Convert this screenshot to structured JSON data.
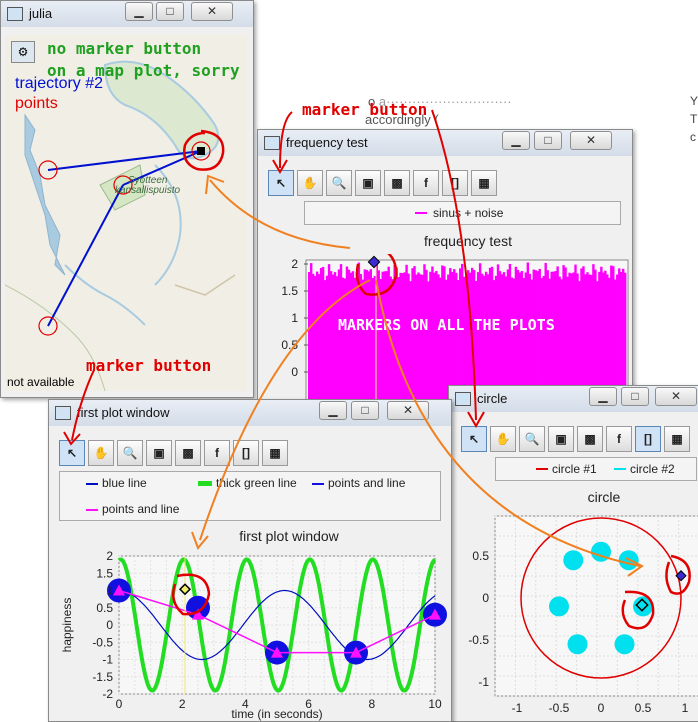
{
  "background_text": {
    "line1": "o",
    "line2": "accordingly (",
    "right_col": [
      "Y",
      "T",
      "c"
    ]
  },
  "julia_window": {
    "title": "julia",
    "map_note_line1": "no marker button",
    "map_note_line2": "on a map plot, sorry",
    "traj_label": "trajectory #2",
    "points_label": "points",
    "park_label_line1": "Syotteen",
    "park_label_line2": "kansallispuisto",
    "status": "not available",
    "colors": {
      "trajectory": "#0010d0",
      "points": "#e00000",
      "note": "#20a020"
    }
  },
  "annotations": {
    "marker_button_1": "marker button",
    "marker_button_2": "marker button",
    "markers_on_all": "MARKERS ON ALL THE PLOTS",
    "color": "#e00000"
  },
  "frequency_window": {
    "title": "frequency test",
    "legend": "sinus + noise",
    "plot_title": "frequency test",
    "toolbar": [
      "pointer-icon",
      "hand-icon",
      "zoom-icon",
      "save-icon",
      "save-as-icon",
      "f",
      "[]",
      "surface-icon"
    ]
  },
  "circle_window": {
    "title": "circle",
    "legend": [
      "circle #1",
      "circle #2"
    ],
    "plot_title": "circle"
  },
  "first_window": {
    "title": "first plot window",
    "legend": [
      "blue line",
      "thick green line",
      "points and line",
      "points and line"
    ],
    "plot_title": "first plot window",
    "xlabel": "time (in seconds)",
    "ylabel": "happiness"
  },
  "window_buttons": {
    "min": "▁",
    "max": "□",
    "close": "✕"
  },
  "toolbar_labels": {
    "f": "f",
    "brackets": "[]"
  },
  "chart_data": [
    {
      "type": "bar",
      "title": "frequency test",
      "series": [
        {
          "name": "sinus + noise",
          "color": "#ff00ff"
        }
      ],
      "yticks": [
        "2",
        "1.5",
        "1",
        "0.5",
        "0"
      ],
      "ylim": [
        0,
        2
      ],
      "marker": {
        "y": 1.97
      }
    },
    {
      "type": "scatter",
      "title": "circle",
      "series": [
        {
          "name": "circle #1",
          "color": "#e00000",
          "center": [
            0,
            0
          ],
          "radius": 0.95
        },
        {
          "name": "circle #2",
          "color": "#00e0ee",
          "points": [
            [
              0,
              0.55
            ],
            [
              0.33,
              0.45
            ],
            [
              -0.33,
              0.45
            ],
            [
              0.5,
              -0.1
            ],
            [
              -0.5,
              -0.1
            ],
            [
              0.28,
              -0.55
            ],
            [
              -0.28,
              -0.55
            ]
          ]
        }
      ],
      "xticks": [
        "-1",
        "-0.5",
        "0",
        "0.5",
        "1"
      ],
      "yticks": [
        "0.5",
        "0",
        "-0.5",
        "-1"
      ],
      "markers": [
        [
          0.92,
          0.3
        ],
        [
          0.5,
          -0.1
        ]
      ]
    },
    {
      "type": "line",
      "title": "first plot window",
      "xlabel": "time (in seconds)",
      "ylabel": "happiness",
      "xticks": [
        "0",
        "2",
        "4",
        "6",
        "8",
        "10"
      ],
      "yticks": [
        "2",
        "1.5",
        "1",
        "0.5",
        "0",
        "-0.5",
        "-1",
        "-1.5",
        "-2"
      ],
      "xlim": [
        0,
        10
      ],
      "ylim": [
        -2,
        2
      ],
      "series": [
        {
          "name": "blue line",
          "color": "#0010c0",
          "type": "sine"
        },
        {
          "name": "thick green line",
          "color": "#22dd22",
          "type": "fast-sine"
        },
        {
          "name": "points and line",
          "color": "#1010e0",
          "x": [
            0,
            2.5,
            5,
            7.5,
            10
          ],
          "y": [
            1,
            0.5,
            -0.8,
            -0.8,
            0.3
          ]
        },
        {
          "name": "points and line",
          "color": "#ff10ff",
          "x": [
            0,
            2.5,
            5,
            7.5,
            10
          ],
          "y": [
            1,
            0.3,
            -0.8,
            -0.8,
            0.3
          ]
        }
      ],
      "marker": {
        "x": 2.1,
        "y": 0.8
      }
    }
  ]
}
